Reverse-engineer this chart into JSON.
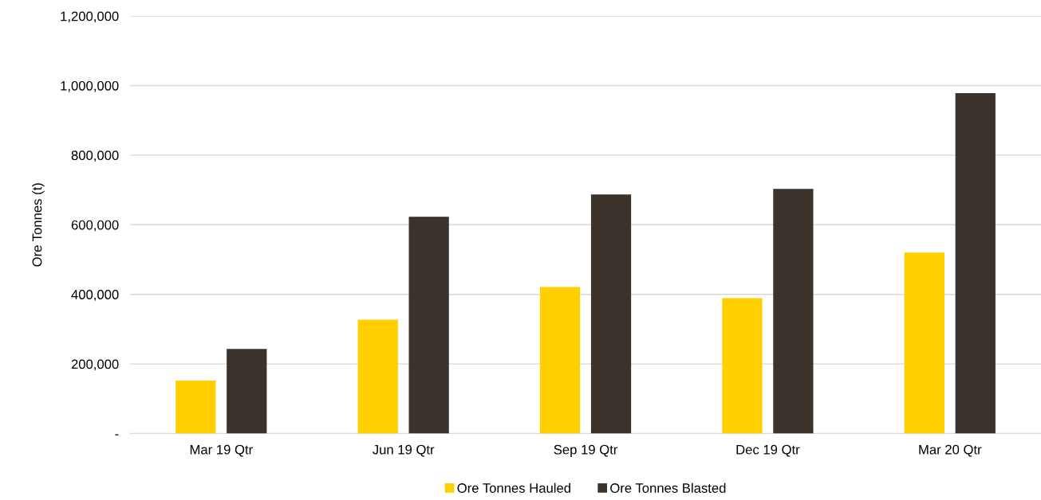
{
  "chart_data": {
    "type": "bar",
    "ylabel": "Ore Tonnes (t)",
    "categories": [
      "Mar 19 Qtr",
      "Jun 19 Qtr",
      "Sep 19 Qtr",
      "Dec 19 Qtr",
      "Mar 20 Qtr"
    ],
    "series": [
      {
        "name": "Ore Tonnes Hauled",
        "color": "#ffcf00",
        "values": [
          152000,
          327000,
          421000,
          389000,
          520000
        ]
      },
      {
        "name": "Ore Tonnes Blasted",
        "color": "#3b322c",
        "values": [
          243000,
          623000,
          687000,
          703000,
          978000
        ]
      }
    ],
    "ylim": [
      0,
      1200000
    ],
    "yticks": [
      {
        "value": 0,
        "label": "-"
      },
      {
        "value": 200000,
        "label": "200,000"
      },
      {
        "value": 400000,
        "label": "400,000"
      },
      {
        "value": 600000,
        "label": "600,000"
      },
      {
        "value": 800000,
        "label": "800,000"
      },
      {
        "value": 1000000,
        "label": "1,000,000"
      },
      {
        "value": 1200000,
        "label": "1,200,000"
      }
    ],
    "grid": "y",
    "legend": "bottom"
  }
}
